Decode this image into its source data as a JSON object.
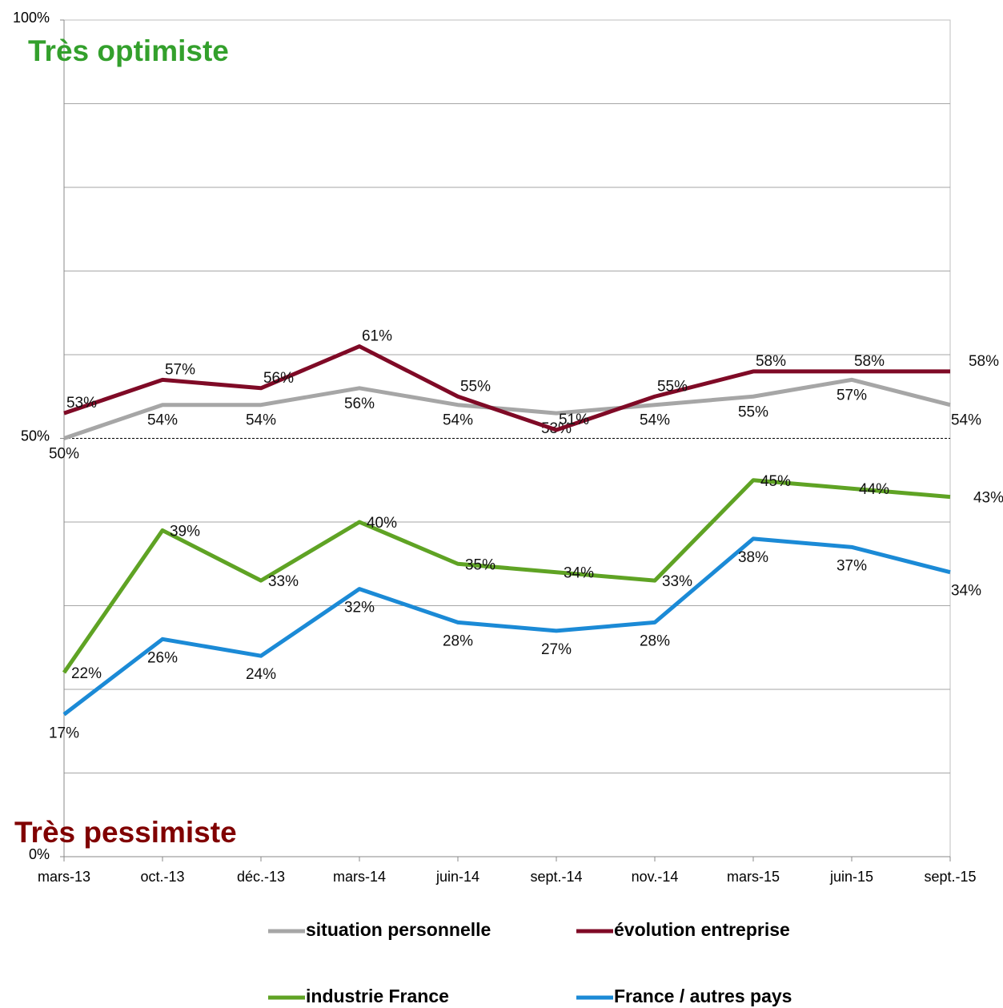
{
  "chart_data": {
    "type": "line",
    "annotations": [
      {
        "text": "Très optimiste",
        "color": "#33a02c"
      },
      {
        "text": "Très pessimiste",
        "color": "#800000"
      }
    ],
    "categories": [
      "mars-13",
      "oct.-13",
      "déc.-13",
      "mars-14",
      "juin-14",
      "sept.-14",
      "nov.-14",
      "mars-15",
      "juin-15",
      "sept.-15"
    ],
    "ylim": [
      0,
      100
    ],
    "yticks": [
      {
        "value": 0,
        "label": "0%"
      },
      {
        "value": 50,
        "label": "50%"
      },
      {
        "value": 100,
        "label": "100%"
      }
    ],
    "ygrid": [
      10,
      20,
      30,
      40,
      60,
      70,
      80,
      90
    ],
    "dashed_line": 50,
    "series": [
      {
        "name": "situation personnelle",
        "color": "#a6a6a6",
        "values": [
          50,
          54,
          54,
          56,
          54,
          53,
          54,
          55,
          57,
          54
        ],
        "value_labels": [
          "50%",
          "54%",
          "54%",
          "56%",
          "54%",
          "53%",
          "54%",
          "55%",
          "57%",
          "54%"
        ]
      },
      {
        "name": "évolution entreprise",
        "color": "#7f0a26",
        "values": [
          53,
          57,
          56,
          61,
          55,
          51,
          55,
          58,
          58,
          58
        ],
        "value_labels": [
          "53%",
          "57%",
          "56%",
          "61%",
          "55%",
          "51%",
          "55%",
          "58%",
          "58%",
          "58%"
        ]
      },
      {
        "name": "industrie France",
        "color": "#5fa324",
        "values": [
          22,
          39,
          33,
          40,
          35,
          34,
          33,
          45,
          44,
          43
        ],
        "value_labels": [
          "22%",
          "39%",
          "33%",
          "40%",
          "35%",
          "34%",
          "33%",
          "45%",
          "44%",
          "43%"
        ]
      },
      {
        "name": "France / autres pays",
        "color": "#1b8ad6",
        "values": [
          17,
          26,
          24,
          32,
          28,
          27,
          28,
          38,
          37,
          34
        ],
        "value_labels": [
          "17%",
          "26%",
          "24%",
          "32%",
          "28%",
          "27%",
          "28%",
          "38%",
          "37%",
          "34%"
        ]
      }
    ]
  }
}
